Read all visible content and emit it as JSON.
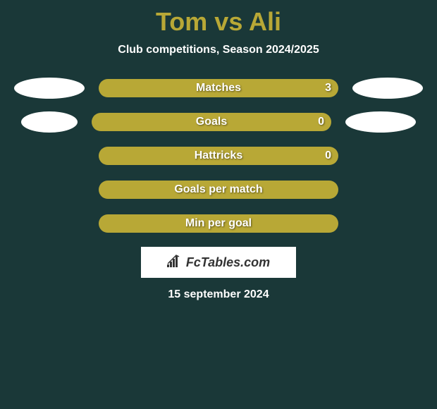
{
  "title": "Tom vs Ali",
  "subtitle": "Club competitions, Season 2024/2025",
  "stats": [
    {
      "label": "Matches",
      "value": "3",
      "show_left_ellipse": true,
      "show_right_ellipse": true,
      "left_ellipse_width": 100,
      "right_ellipse_width": 100
    },
    {
      "label": "Goals",
      "value": "0",
      "show_left_ellipse": true,
      "show_right_ellipse": true,
      "left_ellipse_width": 80,
      "right_ellipse_width": 100
    },
    {
      "label": "Hattricks",
      "value": "0",
      "show_left_ellipse": false,
      "show_right_ellipse": false
    },
    {
      "label": "Goals per match",
      "value": "",
      "show_left_ellipse": false,
      "show_right_ellipse": false
    },
    {
      "label": "Min per goal",
      "value": "",
      "show_left_ellipse": false,
      "show_right_ellipse": false
    }
  ],
  "logo_text": "FcTables.com",
  "date": "15 september 2024",
  "colors": {
    "background": "#1a3838",
    "accent": "#b8a836",
    "white": "#ffffff",
    "logo_text": "#333333"
  }
}
